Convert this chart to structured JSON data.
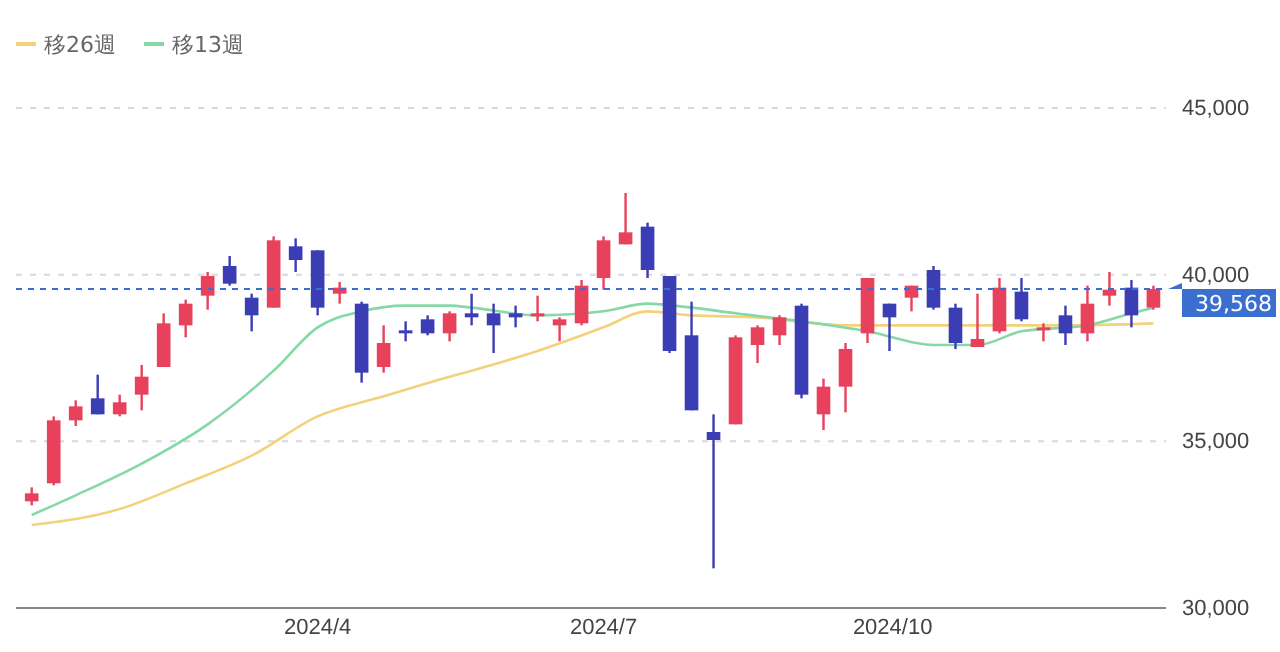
{
  "chart_data": {
    "type": "candlestick",
    "x": [
      "2024-01-01",
      "2024-01-08",
      "2024-01-15",
      "2024-01-22",
      "2024-01-29",
      "2024-02-05",
      "2024-02-12",
      "2024-02-19",
      "2024-02-26",
      "2024-03-04",
      "2024-03-11",
      "2024-03-18",
      "2024-03-25",
      "2024-04-01",
      "2024-04-08",
      "2024-04-15",
      "2024-04-22",
      "2024-04-29",
      "2024-05-06",
      "2024-05-13",
      "2024-05-20",
      "2024-05-27",
      "2024-06-03",
      "2024-06-10",
      "2024-06-17",
      "2024-06-24",
      "2024-07-01",
      "2024-07-08",
      "2024-07-15",
      "2024-07-22",
      "2024-07-29",
      "2024-08-05",
      "2024-08-12",
      "2024-08-19",
      "2024-08-26",
      "2024-09-02",
      "2024-09-09",
      "2024-09-16",
      "2024-09-23",
      "2024-09-30",
      "2024-10-07",
      "2024-10-14",
      "2024-10-21",
      "2024-10-28",
      "2024-11-04",
      "2024-11-11",
      "2024-11-18",
      "2024-11-25",
      "2024-12-02",
      "2024-12-09",
      "2024-12-16",
      "2024-12-23"
    ],
    "ohlc": [
      [
        33200,
        33620,
        33080,
        33440
      ],
      [
        33740,
        35750,
        33680,
        35630
      ],
      [
        35630,
        36230,
        35460,
        36050
      ],
      [
        36290,
        37000,
        35810,
        35810
      ],
      [
        35810,
        36400,
        35750,
        36170
      ],
      [
        36400,
        37290,
        35930,
        36940
      ],
      [
        37230,
        38840,
        37230,
        38540
      ],
      [
        38480,
        39250,
        38120,
        39130
      ],
      [
        39370,
        40080,
        38950,
        39960
      ],
      [
        40260,
        40560,
        39670,
        39730
      ],
      [
        39310,
        39430,
        38300,
        38780
      ],
      [
        39010,
        41150,
        39010,
        41030
      ],
      [
        40850,
        41090,
        40080,
        40440
      ],
      [
        40730,
        40730,
        38780,
        39010
      ],
      [
        39430,
        39780,
        39130,
        39610
      ],
      [
        39130,
        39190,
        36760,
        37060
      ],
      [
        37230,
        38480,
        37060,
        37950
      ],
      [
        38330,
        38600,
        38000,
        38300
      ],
      [
        38660,
        38780,
        38180,
        38240
      ],
      [
        38240,
        38900,
        38000,
        38840
      ],
      [
        38840,
        39430,
        38480,
        38720
      ],
      [
        38840,
        39130,
        37650,
        38480
      ],
      [
        38840,
        39070,
        38420,
        38720
      ],
      [
        38780,
        39370,
        38600,
        38840
      ],
      [
        38480,
        38720,
        38000,
        38660
      ],
      [
        38540,
        39840,
        38480,
        39670
      ],
      [
        39900,
        41150,
        39550,
        41030
      ],
      [
        40910,
        42450,
        40910,
        41270
      ],
      [
        41440,
        41560,
        39900,
        40140
      ],
      [
        39960,
        39960,
        37650,
        37710
      ],
      [
        38180,
        39190,
        35930,
        35930
      ],
      [
        35280,
        35810,
        31190,
        35040
      ],
      [
        35510,
        38180,
        35510,
        38120
      ],
      [
        37890,
        38480,
        37350,
        38420
      ],
      [
        38180,
        38780,
        37890,
        38720
      ],
      [
        39070,
        39130,
        36290,
        36400
      ],
      [
        35810,
        36880,
        35340,
        36640
      ],
      [
        36640,
        37950,
        35870,
        37770
      ],
      [
        38240,
        39900,
        37950,
        39900
      ],
      [
        39130,
        39130,
        37710,
        38720
      ],
      [
        39310,
        39670,
        38900,
        39670
      ],
      [
        40140,
        40260,
        38950,
        39010
      ],
      [
        39010,
        39130,
        37770,
        37950
      ],
      [
        37830,
        39430,
        37830,
        38070
      ],
      [
        38300,
        39900,
        38240,
        39610
      ],
      [
        39490,
        39900,
        38600,
        38660
      ],
      [
        38360,
        38540,
        38000,
        38420
      ],
      [
        38780,
        39070,
        37890,
        38240
      ],
      [
        38240,
        39670,
        38000,
        39130
      ],
      [
        39370,
        40080,
        39070,
        39550
      ],
      [
        39610,
        39840,
        38420,
        38780
      ],
      [
        39010,
        39670,
        38950,
        39568
      ]
    ],
    "colors": [
      "#e8415b",
      "#e8415b",
      "#e8415b",
      "#3b3db4",
      "#e8415b",
      "#e8415b",
      "#e8415b",
      "#e8415b",
      "#e8415b",
      "#3b3db4",
      "#3b3db4",
      "#e8415b",
      "#3b3db4",
      "#3b3db4",
      "#e8415b",
      "#3b3db4",
      "#e8415b",
      "#3b3db4",
      "#3b3db4",
      "#e8415b",
      "#3b3db4",
      "#3b3db4",
      "#3b3db4",
      "#e8415b",
      "#e8415b",
      "#e8415b",
      "#e8415b",
      "#e8415b",
      "#3b3db4",
      "#3b3db4",
      "#3b3db4",
      "#3b3db4",
      "#e8415b",
      "#e8415b",
      "#e8415b",
      "#3b3db4",
      "#e8415b",
      "#e8415b",
      "#e8415b",
      "#3b3db4",
      "#e8415b",
      "#3b3db4",
      "#3b3db4",
      "#e8415b",
      "#e8415b",
      "#3b3db4",
      "#e8415b",
      "#3b3db4",
      "#e8415b",
      "#e8415b",
      "#3b3db4",
      "#e8415b"
    ],
    "series": [
      {
        "name": "移26週",
        "type": "line",
        "color": "#f3d27c",
        "x": [
          "2024-01-01",
          "2024-01-29",
          "2024-02-19",
          "2024-03-11",
          "2024-04-01",
          "2024-04-22",
          "2024-05-13",
          "2024-05-20",
          "2024-06-10",
          "2024-07-01",
          "2024-07-15",
          "2024-07-29",
          "2024-08-19",
          "2024-09-16",
          "2024-09-23",
          "2024-10-14",
          "2024-11-04",
          "2024-11-25",
          "2024-12-23"
        ],
        "values": [
          32490,
          32970,
          33740,
          34570,
          35750,
          36350,
          36940,
          37120,
          37710,
          38420,
          38900,
          38780,
          38720,
          38480,
          38480,
          38480,
          38480,
          38480,
          38540
        ]
      },
      {
        "name": "移13週",
        "type": "line",
        "color": "#86d8a6",
        "x": [
          "2024-01-01",
          "2024-01-15",
          "2024-02-05",
          "2024-02-26",
          "2024-03-18",
          "2024-04-01",
          "2024-04-15",
          "2024-04-29",
          "2024-05-13",
          "2024-05-20",
          "2024-06-10",
          "2024-07-01",
          "2024-07-15",
          "2024-07-29",
          "2024-08-12",
          "2024-09-02",
          "2024-09-23",
          "2024-10-14",
          "2024-10-28",
          "2024-11-11",
          "2024-12-02",
          "2024-12-16",
          "2024-12-23"
        ],
        "values": [
          32790,
          33380,
          34330,
          35510,
          37120,
          38420,
          38900,
          39070,
          39070,
          39010,
          38780,
          38900,
          39130,
          39010,
          38840,
          38600,
          38300,
          37890,
          37890,
          38300,
          38480,
          38840,
          39010
        ]
      }
    ],
    "xlim": [
      "2023-12-27",
      "2024-12-27"
    ],
    "xticks": [
      {
        "value": "2024-04-01",
        "label": "2024/4"
      },
      {
        "value": "2024-07-01",
        "label": "2024/7"
      },
      {
        "value": "2024-10-01",
        "label": "2024/10"
      }
    ],
    "ylim": [
      30000,
      45000
    ],
    "yticks": [
      {
        "value": 30000,
        "label": "30,000"
      },
      {
        "value": 35000,
        "label": "35,000"
      },
      {
        "value": 40000,
        "label": "40,000"
      },
      {
        "value": 45000,
        "label": "45,000"
      }
    ],
    "grid": "y",
    "legend": "top left",
    "ref_lines": [
      {
        "axis": "y",
        "value": 39568,
        "label": "39,568",
        "color": "#3a6fd0",
        "line_style": "dashed"
      }
    ]
  }
}
